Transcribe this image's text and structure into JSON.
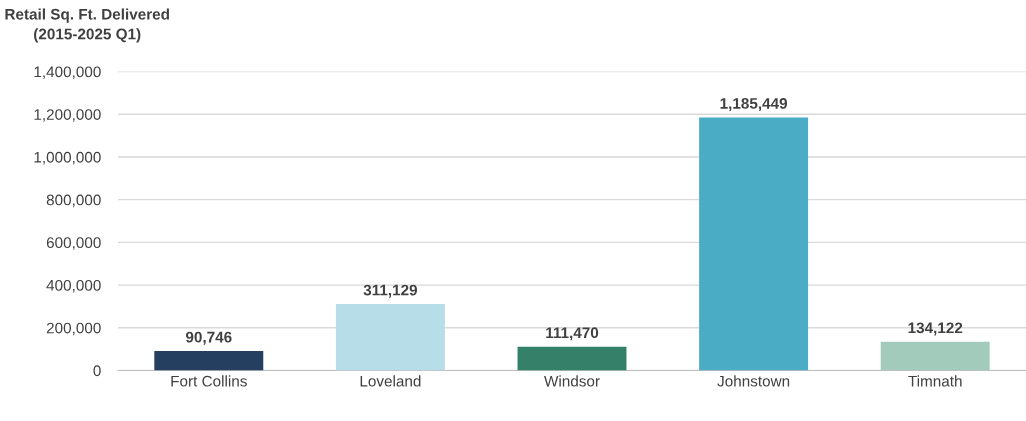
{
  "chart_data": {
    "type": "bar",
    "title": "Retail Sq. Ft. Delivered\n(2015-2025 Q1)",
    "categories": [
      "Fort Collins",
      "Loveland",
      "Windsor",
      "Johnstown",
      "Timnath"
    ],
    "values": [
      90746,
      311129,
      111470,
      1185449,
      134122
    ],
    "colors": [
      "#243f60",
      "#b7dde8",
      "#358068",
      "#4bacc6",
      "#a3cbbb"
    ],
    "ylim": [
      0,
      1400000
    ],
    "yticks": [
      {
        "value": 0,
        "label": "0"
      },
      {
        "value": 200000,
        "label": "200,000"
      },
      {
        "value": 400000,
        "label": "400,000"
      },
      {
        "value": 600000,
        "label": "600,000"
      },
      {
        "value": 800000,
        "label": "800,000"
      },
      {
        "value": 1000000,
        "label": "1,000,000"
      },
      {
        "value": 1200000,
        "label": "1,200,000"
      },
      {
        "value": 1400000,
        "label": "1,400,000"
      }
    ],
    "value_labels": [
      "90,746",
      "311,129",
      "111,470",
      "1,185,449",
      "134,122"
    ],
    "grid": "y"
  }
}
